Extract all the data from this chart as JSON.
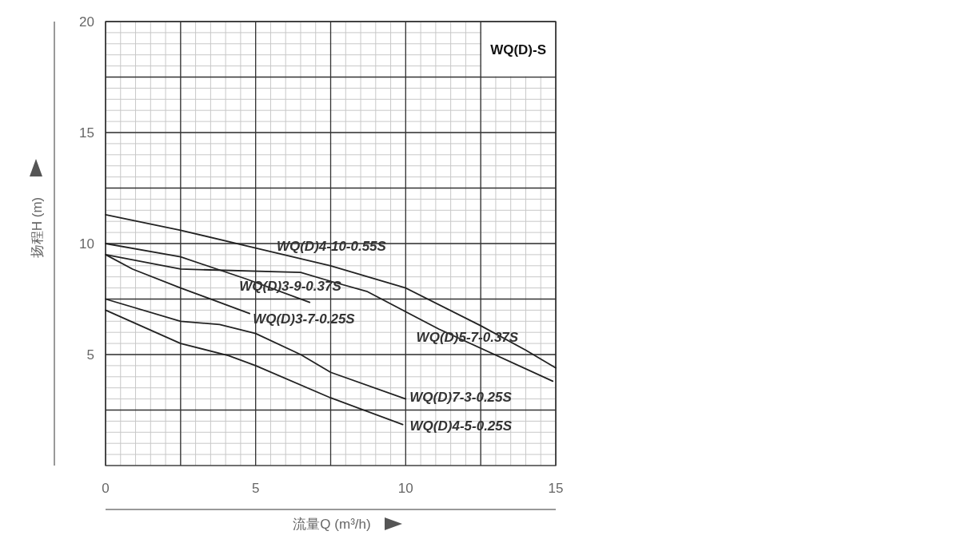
{
  "chart_data": {
    "type": "line",
    "title": "WQ(D)-S",
    "xlabel": "流量Q (m³/h)",
    "ylabel": "扬程H (m)",
    "xlim": [
      0,
      15
    ],
    "ylim": [
      0,
      20
    ],
    "xticks": [
      0,
      {
        "value": 2.5,
        "label": null
      },
      5,
      {
        "value": 7.5,
        "label": null
      },
      10,
      {
        "value": 12.5,
        "label": null
      },
      15
    ],
    "yticks": [
      {
        "value": 2.5,
        "label": null
      },
      5,
      {
        "value": 7.5,
        "label": null
      },
      10,
      {
        "value": 12.5,
        "label": null
      },
      15,
      {
        "value": 17.5,
        "label": null
      },
      20
    ],
    "grid": true,
    "marker": "none",
    "line_style": "solid",
    "series": [
      {
        "color": "#222222",
        "x": [
          0,
          2.5,
          5,
          7.5,
          10,
          12.5,
          14,
          15
        ],
        "values": [
          11.3,
          10.6,
          9.8,
          9.0,
          8.0,
          6.3,
          5.2,
          4.4
        ]
      },
      {
        "color": "#222222",
        "x": [
          0,
          2.5,
          4.7,
          6.8
        ],
        "values": [
          10.0,
          9.4,
          8.4,
          7.35
        ]
      },
      {
        "color": "#222222",
        "x": [
          0,
          2.5,
          6.5,
          7.5,
          8.7,
          11.1,
          14.9
        ],
        "values": [
          9.5,
          8.85,
          8.7,
          8.3,
          7.85,
          6.15,
          3.8
        ]
      },
      {
        "color": "#222222",
        "x": [
          0,
          0.9,
          2.5,
          4.8
        ],
        "values": [
          9.5,
          8.85,
          8.0,
          6.85
        ]
      },
      {
        "color": "#222222",
        "x": [
          0,
          2.5,
          3.8,
          5,
          6.5,
          7.5,
          10
        ],
        "values": [
          7.5,
          6.5,
          6.35,
          5.95,
          5.0,
          4.2,
          3.0
        ]
      },
      {
        "color": "#222222",
        "x": [
          0,
          2.5,
          4.1,
          5,
          7.5,
          9.9
        ],
        "values": [
          7.0,
          5.5,
          4.95,
          4.5,
          3.05,
          1.85
        ]
      }
    ],
    "annotations": [
      {
        "text": "WQ(D)4-10-0.55S",
        "x": 5.7,
        "y": 9.65
      },
      {
        "text": "WQ(D)3-9-0.37S",
        "x": 6.8,
        "y": 7.35
      },
      {
        "text": "WQ(D)3-7-0.25S",
        "x": 4.8,
        "y": 6.85
      },
      {
        "text": "WQ(D)5-7-0.37S",
        "x": 11.1,
        "y": 6.15
      },
      {
        "text": "WQ(D)7-3-0.25S",
        "x": 10,
        "y": 3.0
      },
      {
        "text": "WQ(D)4-5-0.25S",
        "x": 9.9,
        "y": 1.85
      }
    ]
  }
}
